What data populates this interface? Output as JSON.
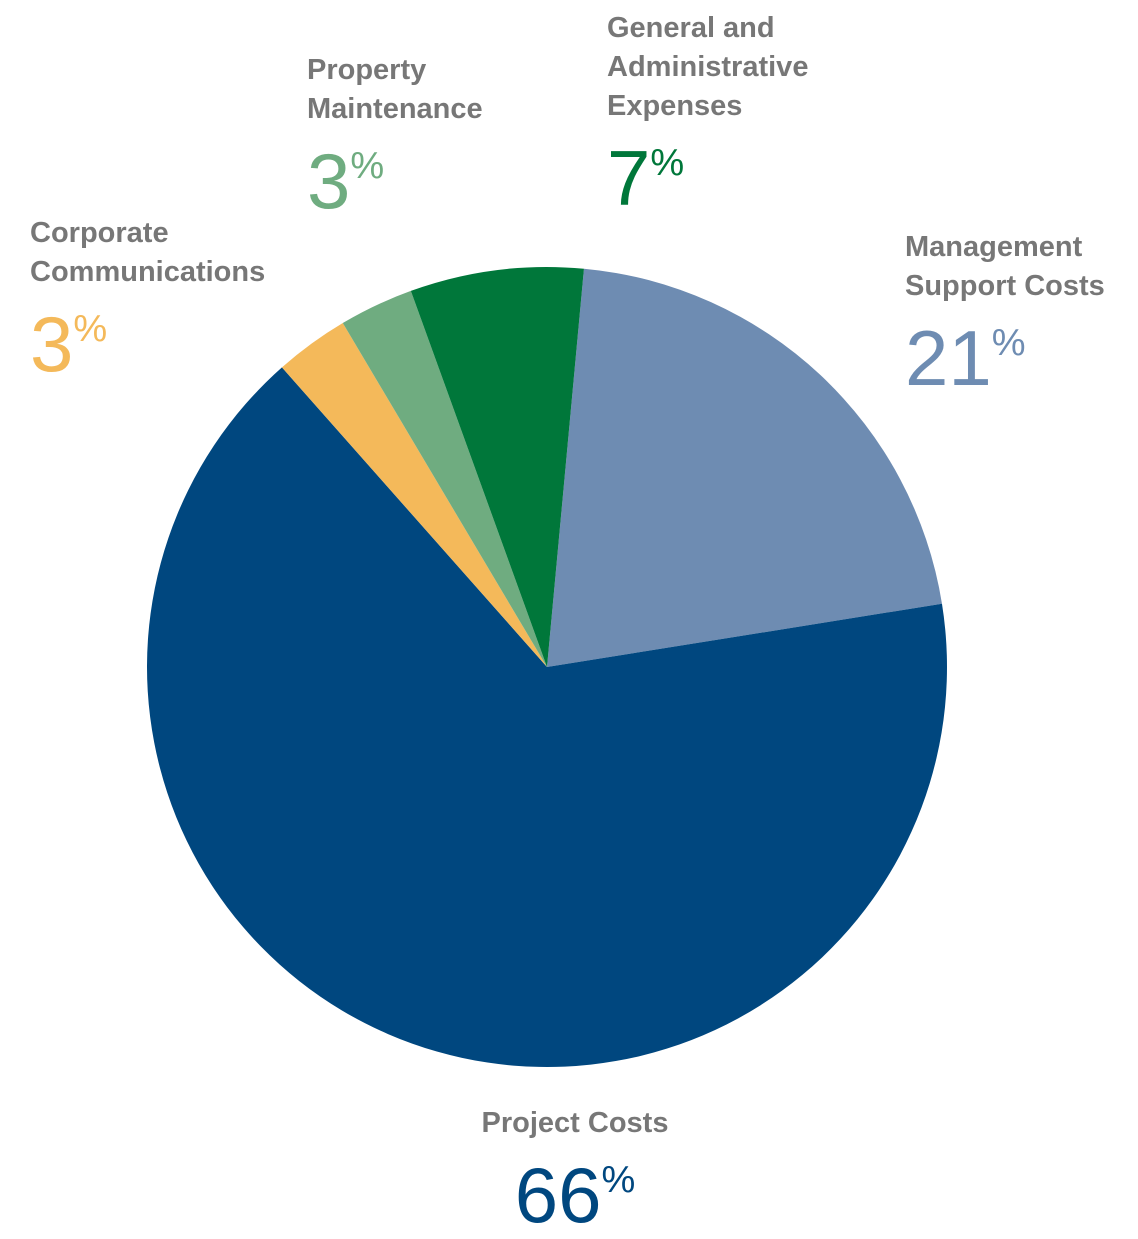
{
  "chart_data": {
    "type": "pie",
    "categories": [
      "Management Support Costs",
      "Project Costs",
      "Corporate Communications",
      "Property Maintenance",
      "General and Administrative Expenses"
    ],
    "values": [
      21,
      66,
      3,
      3,
      7
    ],
    "unit": "%",
    "colors": [
      "#6e8cb2",
      "#00477f",
      "#f4b95a",
      "#6fac80",
      "#00773a"
    ],
    "label_color": "#777777"
  }
}
